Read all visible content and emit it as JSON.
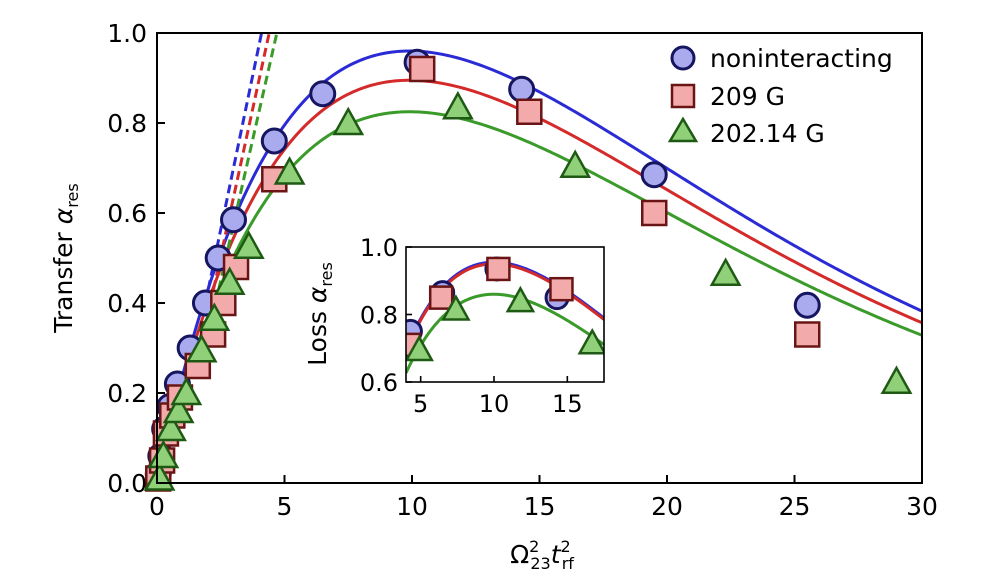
{
  "chart_data": [
    {
      "type": "scatter",
      "role": "main",
      "xlabel": "Ω²₂₃ t²rf",
      "xlabel_parts": {
        "base1": "Ω",
        "sup1": "2",
        "sub1": "23",
        "base2": "t",
        "sup2": "2",
        "sub2": "rf"
      },
      "ylabel": "Transfer α res",
      "ylabel_parts": {
        "text": "Transfer ",
        "symbol": "α",
        "sub": "res"
      },
      "xlim": [
        0,
        30
      ],
      "ylim": [
        0,
        1.0
      ],
      "xticks": [
        "0",
        "5",
        "10",
        "15",
        "20",
        "25",
        "30"
      ],
      "yticks": [
        "0.0",
        "0.2",
        "0.4",
        "0.6",
        "0.8",
        "1.0"
      ],
      "grid": false,
      "legend_position": "top-right",
      "series": [
        {
          "name": "noninteracting",
          "marker": "circle",
          "color": "#2b2bd6",
          "fill": "#aaaaee",
          "edge": "#151560",
          "points": [
            [
              0.05,
              0.02
            ],
            [
              0.15,
              0.06
            ],
            [
              0.3,
              0.12
            ],
            [
              0.5,
              0.17
            ],
            [
              0.8,
              0.22
            ],
            [
              1.3,
              0.3
            ],
            [
              1.9,
              0.4
            ],
            [
              2.4,
              0.5
            ],
            [
              3.0,
              0.585
            ],
            [
              4.6,
              0.76
            ],
            [
              6.5,
              0.865
            ],
            [
              10.2,
              0.935
            ],
            [
              14.3,
              0.875
            ],
            [
              19.5,
              0.685
            ],
            [
              25.5,
              0.395
            ]
          ],
          "fit_peak": 0.96,
          "fit_peak_x": 9.9
        },
        {
          "name": "209 G",
          "marker": "square",
          "color": "#d42a2a",
          "fill": "#f2aaaa",
          "edge": "#6a1515",
          "points": [
            [
              0.05,
              0.01
            ],
            [
              0.2,
              0.05
            ],
            [
              0.35,
              0.11
            ],
            [
              0.6,
              0.15
            ],
            [
              0.9,
              0.19
            ],
            [
              1.6,
              0.26
            ],
            [
              2.2,
              0.33
            ],
            [
              2.6,
              0.4
            ],
            [
              3.1,
              0.48
            ],
            [
              4.6,
              0.675
            ],
            [
              10.4,
              0.92
            ],
            [
              14.6,
              0.825
            ],
            [
              19.5,
              0.6
            ],
            [
              25.5,
              0.33
            ]
          ],
          "fit_peak": 0.895,
          "fit_peak_x": 9.9
        },
        {
          "name": "202.14 G",
          "marker": "triangle",
          "color": "#3a9a2a",
          "fill": "#8fd078",
          "edge": "#1e5a14",
          "points": [
            [
              0.1,
              0.01
            ],
            [
              0.25,
              0.06
            ],
            [
              0.55,
              0.12
            ],
            [
              0.85,
              0.16
            ],
            [
              1.15,
              0.2
            ],
            [
              1.75,
              0.295
            ],
            [
              2.25,
              0.365
            ],
            [
              2.85,
              0.445
            ],
            [
              3.6,
              0.525
            ],
            [
              5.2,
              0.69
            ],
            [
              7.5,
              0.8
            ],
            [
              11.8,
              0.835
            ],
            [
              16.4,
              0.705
            ],
            [
              22.3,
              0.465
            ],
            [
              29.0,
              0.225
            ]
          ],
          "fit_peak": 0.825,
          "fit_peak_x": 9.9
        }
      ],
      "dashed_lines": [
        {
          "series": "noninteracting",
          "x": [
            1.9,
            4.1
          ],
          "y": [
            0.4,
            1.0
          ]
        },
        {
          "series": "209 G",
          "x": [
            2.1,
            4.4
          ],
          "y": [
            0.4,
            1.0
          ]
        },
        {
          "series": "202.14 G",
          "x": [
            2.3,
            4.7
          ],
          "y": [
            0.4,
            1.0
          ]
        }
      ]
    },
    {
      "type": "scatter",
      "role": "inset",
      "xlabel": "",
      "ylabel": "Loss α res",
      "ylabel_parts": {
        "text": "Loss ",
        "symbol": "α",
        "sub": "res"
      },
      "xlim": [
        4,
        17.5
      ],
      "ylim": [
        0.6,
        1.0
      ],
      "xticks": [
        "5",
        "10",
        "15"
      ],
      "yticks": [
        "0.6",
        "0.8",
        "1.0"
      ],
      "series": [
        {
          "name": "noninteracting",
          "points": [
            [
              4.3,
              0.75
            ],
            [
              6.5,
              0.865
            ],
            [
              10.2,
              0.935
            ],
            [
              14.3,
              0.85
            ]
          ]
        },
        {
          "name": "209 G",
          "points": [
            [
              4.2,
              0.71
            ],
            [
              6.4,
              0.85
            ],
            [
              10.3,
              0.935
            ],
            [
              14.6,
              0.875
            ]
          ]
        },
        {
          "name": "202.14 G",
          "points": [
            [
              4.9,
              0.695
            ],
            [
              7.4,
              0.815
            ],
            [
              11.8,
              0.84
            ],
            [
              16.7,
              0.715
            ]
          ]
        }
      ],
      "fits": [
        {
          "series": "noninteracting",
          "peak": 0.955,
          "peak_x": 10.0
        },
        {
          "series": "209 G",
          "peak": 0.95,
          "peak_x": 10.0
        },
        {
          "series": "202.14 G",
          "peak": 0.86,
          "peak_x": 10.0
        }
      ]
    }
  ]
}
